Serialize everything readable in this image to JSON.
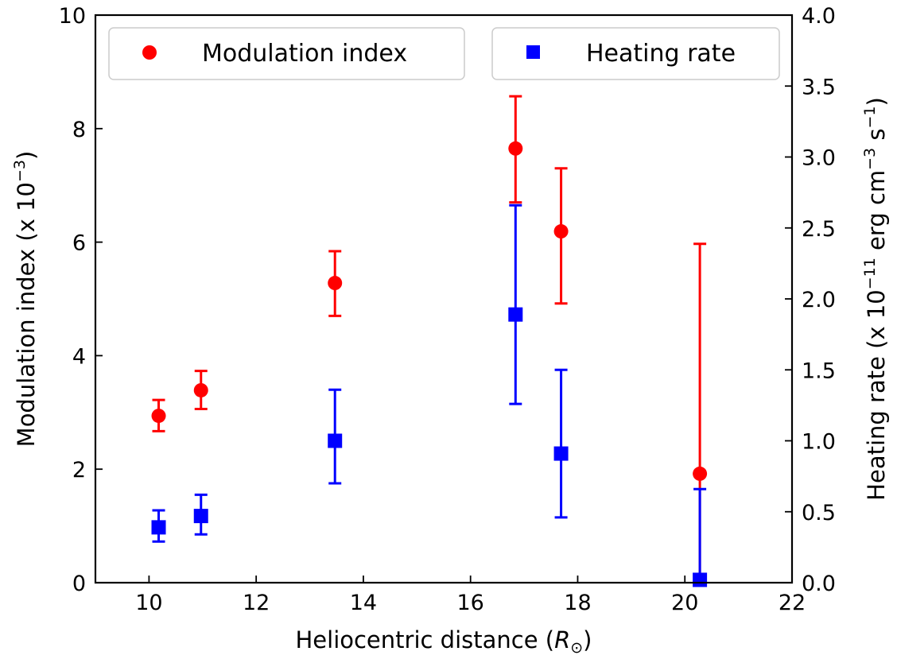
{
  "chart_data": {
    "type": "scatter",
    "xlabel": "Heliocentric distance (",
    "xlabel_symbol": "R",
    "xlabel_subscript": "⊙",
    "xlabel_close": ")",
    "ylabel_left": "Modulation index (x 10",
    "ylabel_left_exp": "−3",
    "ylabel_left_close": ")",
    "ylabel_right": "Heating rate (x 10",
    "ylabel_right_exp1": "−11",
    "ylabel_right_mid1": " erg cm",
    "ylabel_right_exp2": "−3",
    "ylabel_right_mid2": " s",
    "ylabel_right_exp3": "−1",
    "ylabel_right_close": ")",
    "xlim": [
      9,
      22
    ],
    "ylim_left": [
      0,
      10
    ],
    "ylim_right": [
      0,
      4.0
    ],
    "xticks": [
      "10",
      "12",
      "14",
      "16",
      "18",
      "20",
      "22"
    ],
    "yticks_left": [
      "0",
      "2",
      "4",
      "6",
      "8",
      "10"
    ],
    "yticks_right": [
      "0.0",
      "0.5",
      "1.0",
      "1.5",
      "2.0",
      "2.5",
      "3.0",
      "3.5",
      "4.0"
    ],
    "grid": false,
    "legend_placement": "top",
    "series": [
      {
        "name": "Modulation index",
        "axis": "left",
        "marker": "circle",
        "color": "#ff0000",
        "x": [
          10.18,
          10.97,
          13.47,
          16.84,
          17.69,
          20.28
        ],
        "y": [
          2.94,
          3.39,
          5.28,
          7.65,
          6.19,
          1.92
        ],
        "yerr_low": [
          2.67,
          3.06,
          4.7,
          6.7,
          4.92,
          0.0
        ],
        "yerr_high": [
          3.22,
          3.73,
          5.84,
          8.57,
          7.3,
          5.97
        ]
      },
      {
        "name": "Heating rate",
        "axis": "right",
        "marker": "square",
        "color": "#0000ff",
        "x": [
          10.18,
          10.97,
          13.47,
          16.84,
          17.69,
          20.28
        ],
        "y": [
          0.39,
          0.47,
          1.0,
          1.89,
          0.91,
          0.02
        ],
        "yerr_low": [
          0.29,
          0.34,
          0.7,
          1.26,
          0.46,
          0.0
        ],
        "yerr_high": [
          0.51,
          0.62,
          1.36,
          2.66,
          1.5,
          0.66
        ]
      }
    ]
  }
}
